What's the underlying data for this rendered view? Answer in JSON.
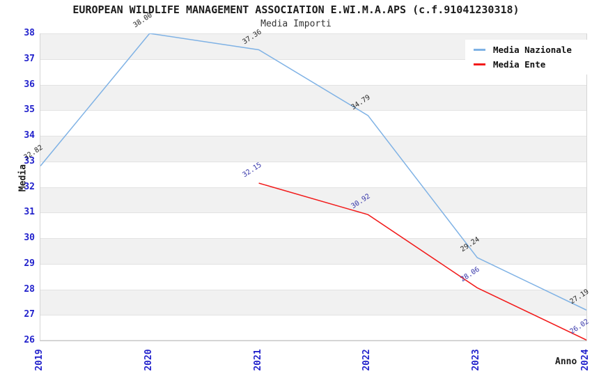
{
  "chart_data": {
    "type": "line",
    "title": "EUROPEAN WILDLIFE MANAGEMENT ASSOCIATION E.WI.M.A.APS (c.f.91041230318)",
    "subtitle": "Media Importi",
    "xlabel": "Anno",
    "ylabel": "Media",
    "x": [
      "2019",
      "2020",
      "2021",
      "2022",
      "2023",
      "2024"
    ],
    "yticks": [
      26,
      27,
      28,
      29,
      30,
      31,
      32,
      33,
      34,
      35,
      36,
      37,
      38
    ],
    "ylim": [
      26,
      38
    ],
    "grid": "horizontal-gridlines-with-alternating-bands",
    "legend_position": "top-right",
    "series": [
      {
        "name": "Media Nazionale",
        "color": "#7fb2e5",
        "label_color": "#262626",
        "values": [
          32.82,
          38.0,
          37.36,
          34.79,
          29.24,
          27.19
        ]
      },
      {
        "name": "Media Ente",
        "color": "#f21a1a",
        "label_color": "#3636aa",
        "values": [
          null,
          null,
          32.15,
          30.92,
          28.06,
          26.02
        ]
      }
    ],
    "colors": {
      "tick_label": "#2222cc",
      "band_gray": "#f1f1f1",
      "band_white": "#ffffff",
      "gridline": "#e2e2e2"
    }
  }
}
